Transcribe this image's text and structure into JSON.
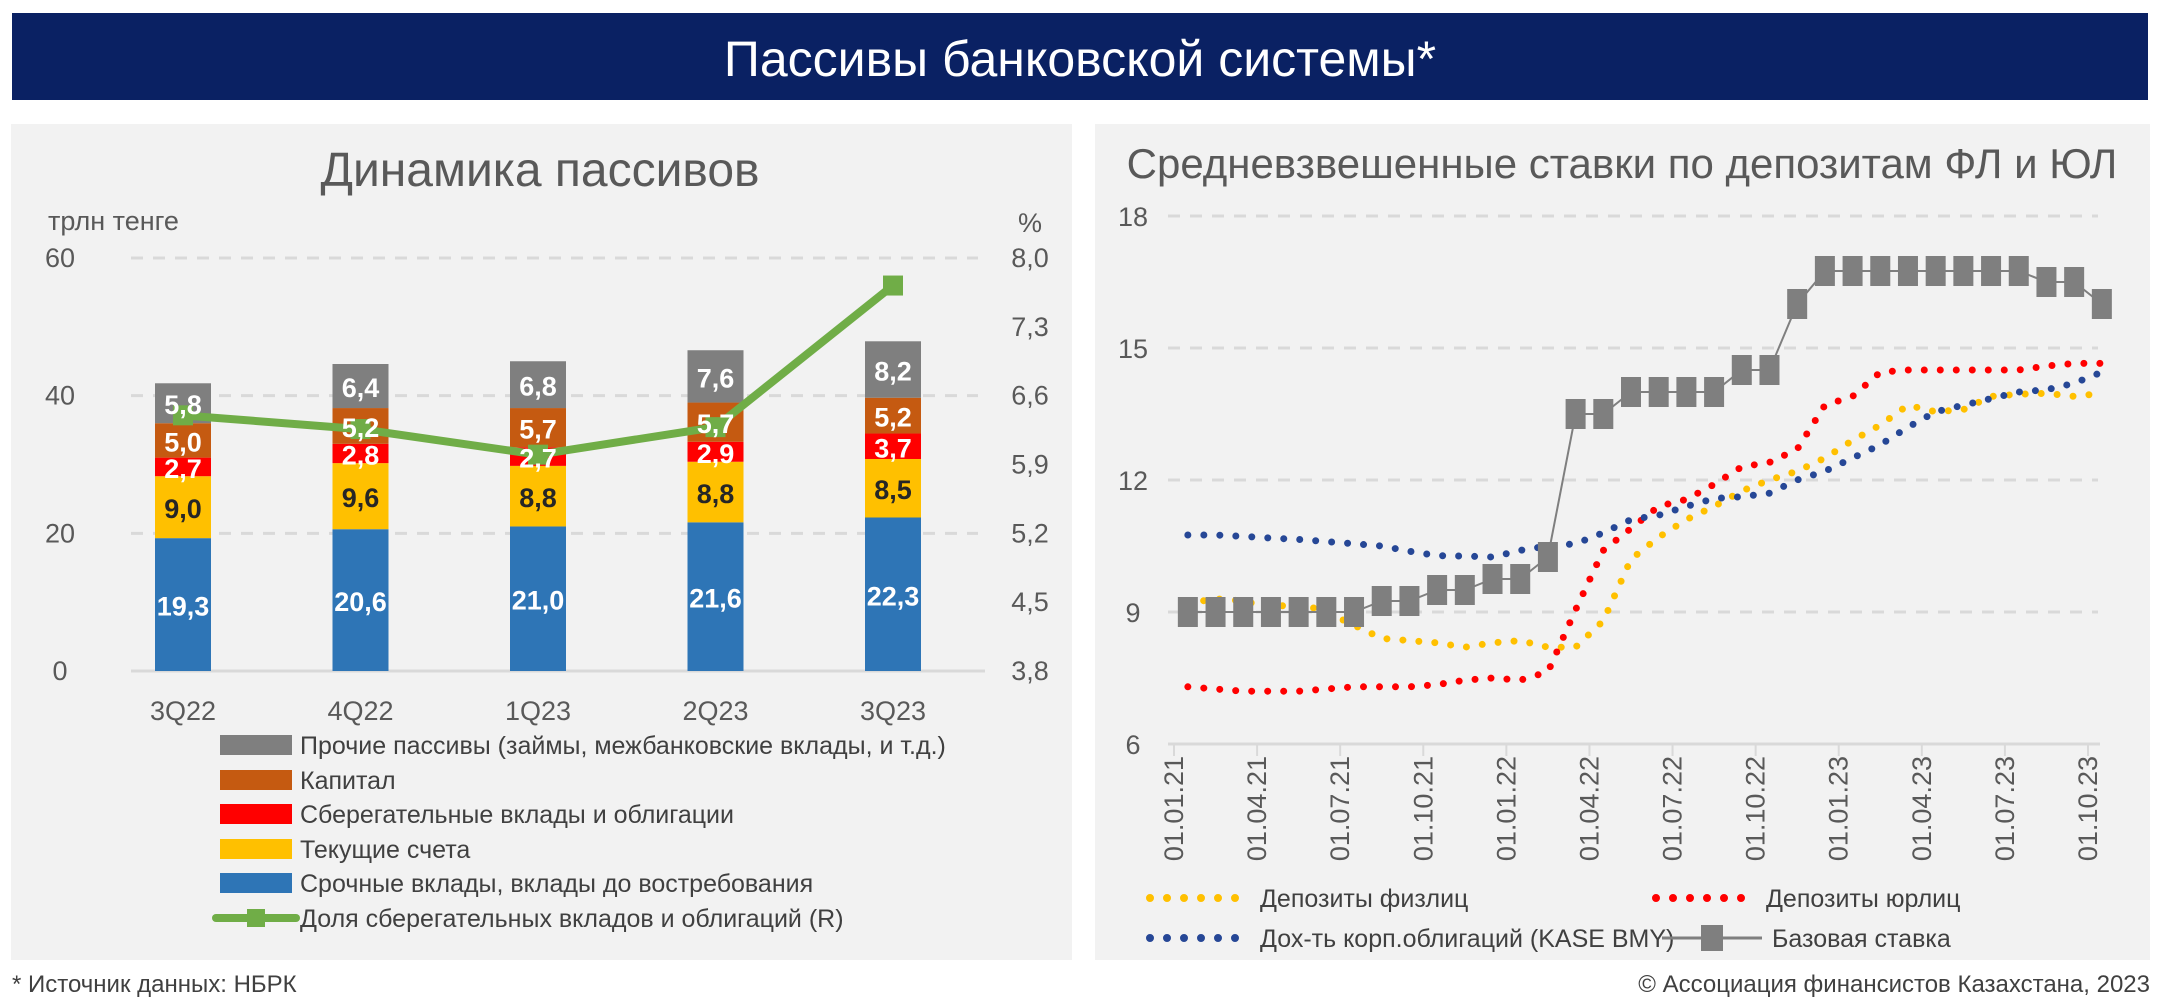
{
  "header": {
    "title": "Пассивы банковской системы*"
  },
  "colors": {
    "header_bg": "#0a2163",
    "panel_bg": "#f2f2f2",
    "term_deposits": "#2e75b6",
    "current_accounts": "#ffc000",
    "savings": "#ff0000",
    "capital": "#c55a11",
    "other": "#7f7f7f",
    "share_line": "#70ad47",
    "individuals": "#ffc000",
    "legal": "#ff0000",
    "corp_bonds": "#264796",
    "base_rate": "#7f7f7f"
  },
  "footer": {
    "source": "* Источник данных: НБРК",
    "copyright": "© Ассоциация финансистов Казахстана, 2023"
  },
  "chart_data": [
    {
      "type": "bar",
      "stacked": true,
      "title": "Динамика пассивов",
      "ylabel": "трлн тенге",
      "y2label": "%",
      "ylim": [
        0,
        60
      ],
      "yticks": [
        "0",
        "20",
        "40",
        "60"
      ],
      "y2lim": [
        3.8,
        8.0
      ],
      "y2ticks": [
        "3,8",
        "4,5",
        "5,2",
        "5,9",
        "6,6",
        "7,3",
        "8,0"
      ],
      "grid": true,
      "legend_position": "bottom",
      "categories": [
        "3Q22",
        "4Q22",
        "1Q23",
        "2Q23",
        "3Q23"
      ],
      "series": [
        {
          "name": "Срочные вклады, вклады до востребования",
          "key": "term_deposits",
          "values": [
            19.3,
            20.6,
            21.0,
            21.6,
            22.3
          ],
          "labels": [
            "19,3",
            "20,6",
            "21,0",
            "21,6",
            "22,3"
          ]
        },
        {
          "name": "Текущие счета",
          "key": "current_accounts",
          "values": [
            9.0,
            9.6,
            8.8,
            8.8,
            8.5
          ],
          "labels": [
            "9,0",
            "9,6",
            "8,8",
            "8,8",
            "8,5"
          ]
        },
        {
          "name": "Сберегательные вклады и облигации",
          "key": "savings",
          "values": [
            2.7,
            2.8,
            2.7,
            2.9,
            3.7
          ],
          "labels": [
            "2,7",
            "2,8",
            "2,7",
            "2,9",
            "3,7"
          ]
        },
        {
          "name": "Капитал",
          "key": "capital",
          "values": [
            5.0,
            5.2,
            5.7,
            5.7,
            5.2
          ],
          "labels": [
            "5,0",
            "5,2",
            "5,7",
            "5,7",
            "5,2"
          ]
        },
        {
          "name": "Прочие пассивы (займы, межбанковские вклады, и т.д.)",
          "key": "other",
          "values": [
            5.8,
            6.4,
            6.8,
            7.6,
            8.2
          ],
          "labels": [
            "5,8",
            "6,4",
            "6,8",
            "7,6",
            "8,2"
          ]
        }
      ],
      "line_series": {
        "name": "Доля сберегательных вкладов и облигаций (R)",
        "key": "share_line",
        "axis": "right",
        "values": [
          6.4,
          6.26,
          6.0,
          6.28,
          7.72
        ]
      }
    },
    {
      "type": "line",
      "title": "Средневзвешенные ставки по депозитам ФЛ и ЮЛ",
      "ylim": [
        6,
        18
      ],
      "yticks": [
        "6",
        "9",
        "12",
        "15",
        "18"
      ],
      "grid": true,
      "legend_position": "bottom",
      "x_range": [
        "01.01.21",
        "01.10.23"
      ],
      "xticks": [
        "01.01.21",
        "01.04.21",
        "01.07.21",
        "01.10.21",
        "01.01.22",
        "01.04.22",
        "01.07.22",
        "01.10.22",
        "01.01.23",
        "01.04.23",
        "01.07.23",
        "01.10.23"
      ],
      "x_frequency": "monthly",
      "series": [
        {
          "name": "Депозиты физлиц",
          "key": "individuals",
          "style": "dotted",
          "values": [
            9.2,
            9.3,
            9.25,
            9.1,
            9.2,
            9.0,
            8.7,
            8.4,
            8.35,
            8.3,
            8.2,
            8.3,
            8.35,
            8.2,
            8.2,
            8.8,
            10.2,
            10.7,
            11.1,
            11.4,
            11.75,
            12.0,
            12.2,
            12.5,
            12.9,
            13.25,
            13.7,
            13.55,
            13.6,
            13.9,
            13.95,
            13.97,
            13.9,
            13.97
          ]
        },
        {
          "name": "Депозиты юрлиц",
          "key": "legal",
          "style": "dotted",
          "values": [
            7.3,
            7.25,
            7.2,
            7.2,
            7.2,
            7.25,
            7.3,
            7.3,
            7.3,
            7.35,
            7.45,
            7.5,
            7.45,
            7.64,
            9.05,
            10.4,
            10.9,
            11.4,
            11.56,
            11.9,
            12.3,
            12.4,
            12.7,
            13.7,
            13.9,
            14.45,
            14.5,
            14.5,
            14.5,
            14.5,
            14.5,
            14.59,
            14.65,
            14.65
          ]
        },
        {
          "name": "Дох-ть корп.облигаций (KASE BMY)",
          "key": "corp_bonds",
          "style": "dotted",
          "values": [
            10.75,
            10.75,
            10.72,
            10.68,
            10.65,
            10.6,
            10.55,
            10.5,
            10.38,
            10.28,
            10.27,
            10.25,
            10.4,
            10.5,
            10.55,
            10.8,
            11.1,
            11.2,
            11.4,
            11.58,
            11.62,
            11.7,
            12.0,
            12.2,
            12.5,
            12.8,
            13.2,
            13.55,
            13.7,
            13.85,
            14.0,
            14.05,
            14.2,
            14.45
          ]
        },
        {
          "name": "Базовая ставка",
          "key": "base_rate",
          "style": "line-square-markers",
          "values": [
            9.0,
            9.0,
            9.0,
            9.0,
            9.0,
            9.0,
            9.0,
            9.25,
            9.25,
            9.5,
            9.5,
            9.75,
            9.75,
            10.25,
            13.5,
            13.5,
            14.0,
            14.0,
            14.0,
            14.0,
            14.5,
            14.5,
            16.0,
            16.75,
            16.75,
            16.75,
            16.75,
            16.75,
            16.75,
            16.75,
            16.75,
            16.5,
            16.5,
            16.0
          ]
        }
      ]
    }
  ]
}
